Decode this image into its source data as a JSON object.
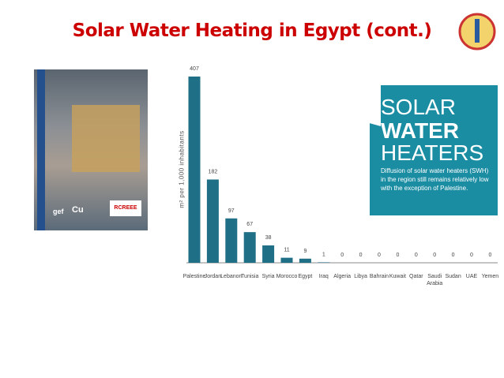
{
  "title": "Solar Water Heating in Egypt (cont.)",
  "cover": {
    "logos": [
      "gef",
      "Cu",
      "RCREEE"
    ]
  },
  "infobox": {
    "line1": "SOLAR",
    "line2": "WATER",
    "line3": "HEATERS",
    "text": "Diffusion of solar water heaters (SWH) in the region still remains relatively low with the exception of Palestine."
  },
  "chart_data": {
    "type": "bar",
    "ylabel": "m² per 1,000 inhabitants",
    "color": "#1f6f86",
    "categories": [
      "Palestine",
      "Jordan",
      "Lebanon",
      "Tunisia",
      "Syria",
      "Morocco",
      "Egypt",
      "Iraq",
      "Algeria",
      "Libya",
      "Bahrain",
      "Kuwait",
      "Qatar",
      "Saudi Arabia",
      "Sudan",
      "UAE",
      "Yemen"
    ],
    "values": [
      407,
      182,
      97,
      67,
      38,
      11,
      9,
      1,
      0,
      0,
      0,
      0,
      0,
      0,
      0,
      0,
      0
    ]
  }
}
